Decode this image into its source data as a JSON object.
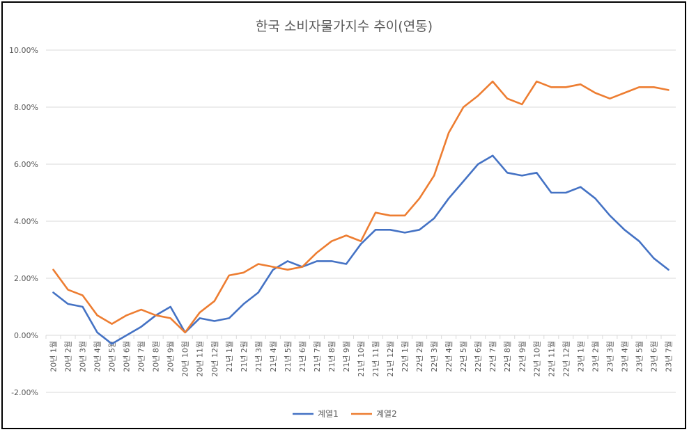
{
  "chart_data": {
    "type": "line",
    "title": "한국 소비자물가지수 추이(연동)",
    "xlabel": "",
    "ylabel": "",
    "ylim": [
      -2.0,
      10.0
    ],
    "y_ticks": [
      "10.00%",
      "8.00%",
      "6.00%",
      "4.00%",
      "2.00%",
      "0.00%",
      "-2.00%"
    ],
    "categories": [
      "20년 1월",
      "20년 2월",
      "20년 3월",
      "20년 4월",
      "20년 5월",
      "20년 6월",
      "20년 7월",
      "20년 8월",
      "20년 9월",
      "20년 10월",
      "20년 11월",
      "20년 12월",
      "21년 1월",
      "21년 2월",
      "21년 3월",
      "21년 4월",
      "21년 5월",
      "21년 6월",
      "21년 7월",
      "21년 8월",
      "21년 9월",
      "21년 10월",
      "21년 11월",
      "21년 12월",
      "22년 1월",
      "22년 2월",
      "22년 3월",
      "22년 4월",
      "22년 5월",
      "22년 6월",
      "22년 7월",
      "22년 8월",
      "22년 9월",
      "22년 10월",
      "22년 11월",
      "22년 12월",
      "23년 1월",
      "23년 2월",
      "23년 3월",
      "23년 4월",
      "23년 5월",
      "23년 6월",
      "23년 7월"
    ],
    "grid": true,
    "legend_position": "bottom",
    "series": [
      {
        "name": "계열1",
        "color": "#4472C4",
        "values": [
          1.5,
          1.1,
          1.0,
          0.1,
          -0.3,
          0.0,
          0.3,
          0.7,
          1.0,
          0.1,
          0.6,
          0.5,
          0.6,
          1.1,
          1.5,
          2.3,
          2.6,
          2.4,
          2.6,
          2.6,
          2.5,
          3.2,
          3.7,
          3.7,
          3.6,
          3.7,
          4.1,
          4.8,
          5.4,
          6.0,
          6.3,
          5.7,
          5.6,
          5.7,
          5.0,
          5.0,
          5.2,
          4.8,
          4.2,
          3.7,
          3.3,
          2.7,
          2.3
        ]
      },
      {
        "name": "계열2",
        "color": "#ED7D31",
        "values": [
          2.3,
          1.6,
          1.4,
          0.7,
          0.4,
          0.7,
          0.9,
          0.7,
          0.6,
          0.1,
          0.8,
          1.2,
          2.1,
          2.2,
          2.5,
          2.4,
          2.3,
          2.4,
          2.9,
          3.3,
          3.5,
          3.3,
          4.3,
          4.2,
          4.2,
          4.8,
          5.6,
          7.1,
          8.0,
          8.4,
          8.9,
          8.3,
          8.1,
          8.9,
          8.7,
          8.7,
          8.8,
          8.5,
          8.3,
          8.5,
          8.7,
          8.7,
          8.6
        ]
      }
    ]
  }
}
